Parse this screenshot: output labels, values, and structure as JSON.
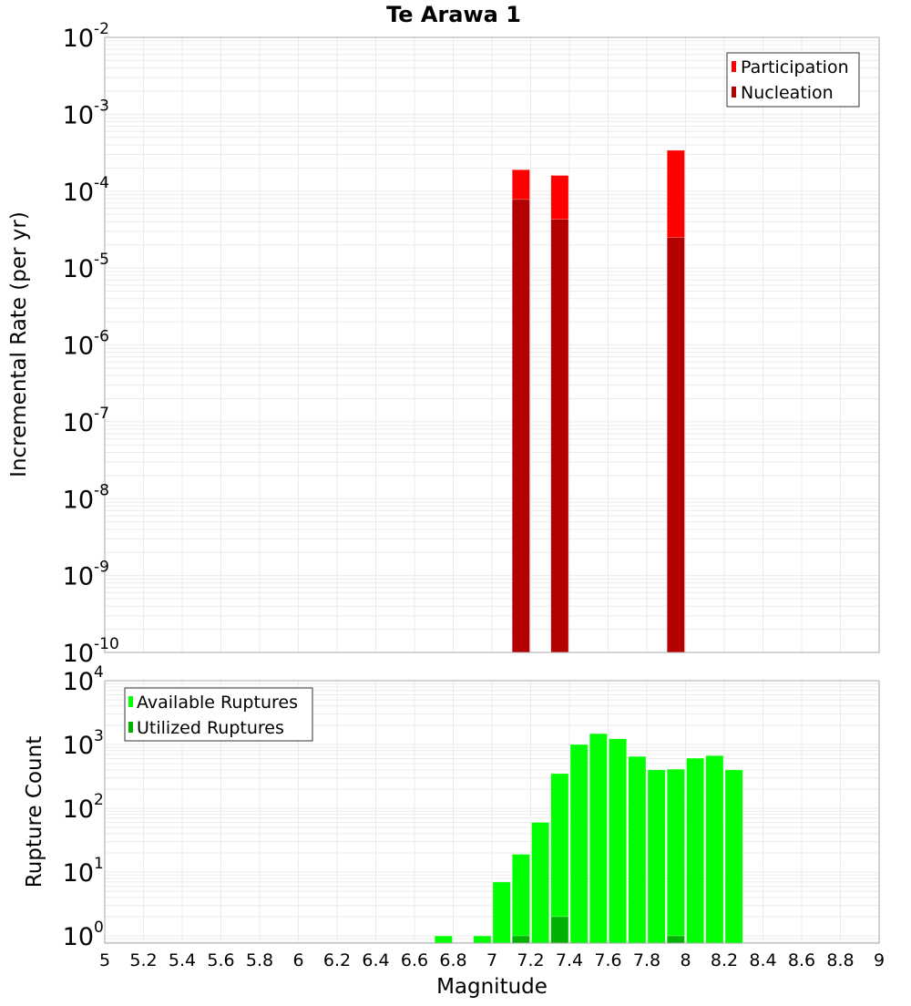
{
  "chart_data": [
    {
      "type": "bar",
      "title": "Te Arawa 1",
      "xlabel": "Magnitude",
      "ylabel": "Incremental Rate (per yr)",
      "yscale": "log",
      "xlim": [
        5,
        9
      ],
      "ylim": [
        1e-10,
        0.01
      ],
      "x_ticks": [
        "5",
        "5.2",
        "5.4",
        "5.6",
        "5.8",
        "6",
        "6.2",
        "6.4",
        "6.6",
        "6.8",
        "7",
        "7.2",
        "7.4",
        "7.6",
        "7.8",
        "8",
        "8.2",
        "8.4",
        "8.6",
        "8.8",
        "9"
      ],
      "y_ticks": [
        {
          "base": "10",
          "exp": "-2"
        },
        {
          "base": "10",
          "exp": "-3"
        },
        {
          "base": "10",
          "exp": "-4"
        },
        {
          "base": "10",
          "exp": "-5"
        },
        {
          "base": "10",
          "exp": "-6"
        },
        {
          "base": "10",
          "exp": "-7"
        },
        {
          "base": "10",
          "exp": "-8"
        },
        {
          "base": "10",
          "exp": "-9"
        },
        {
          "base": "10",
          "exp": "-10"
        }
      ],
      "grid": true,
      "legend_position": "upper right",
      "series": [
        {
          "name": "Participation",
          "color": "#ff0000",
          "x": [
            7.15,
            7.35,
            7.95
          ],
          "values": [
            0.00019,
            0.00016,
            0.00034
          ]
        },
        {
          "name": "Nucleation",
          "color": "#b30000",
          "x": [
            7.15,
            7.35,
            7.95
          ],
          "values": [
            7.8e-05,
            4.3e-05,
            2.5e-05
          ]
        }
      ]
    },
    {
      "type": "bar",
      "title": "",
      "xlabel": "Magnitude",
      "ylabel": "Rupture Count",
      "yscale": "log",
      "xlim": [
        5,
        9
      ],
      "ylim": [
        0.77,
        10000.0
      ],
      "y_ticks": [
        {
          "base": "10",
          "exp": "4"
        },
        {
          "base": "10",
          "exp": "3"
        },
        {
          "base": "10",
          "exp": "2"
        },
        {
          "base": "10",
          "exp": "1"
        },
        {
          "base": "10",
          "exp": "0"
        }
      ],
      "grid": true,
      "legend_position": "upper left",
      "series": [
        {
          "name": "Available Ruptures",
          "color": "#00ff00",
          "x": [
            6.75,
            6.95,
            7.05,
            7.15,
            7.25,
            7.35,
            7.45,
            7.55,
            7.65,
            7.75,
            7.85,
            7.95,
            8.05,
            8.15,
            8.25
          ],
          "values": [
            1,
            1,
            7,
            19,
            60,
            350,
            1000,
            1480,
            1230,
            650,
            400,
            410,
            610,
            670,
            400
          ]
        },
        {
          "name": "Utilized Ruptures",
          "color": "#00b300",
          "x": [
            7.15,
            7.35,
            7.95
          ],
          "values": [
            1,
            2,
            1
          ]
        }
      ]
    }
  ]
}
